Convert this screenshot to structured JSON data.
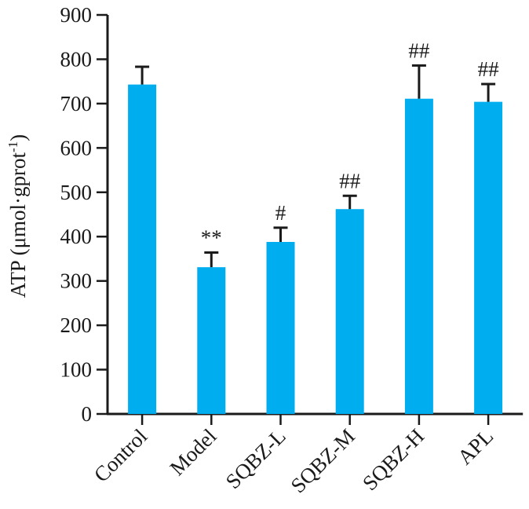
{
  "chart_data": {
    "type": "bar",
    "categories": [
      "Control",
      "Model",
      "SQBZ-L",
      "SQBZ-M",
      "SQBZ-H",
      "APL"
    ],
    "values": [
      743,
      331,
      388,
      462,
      711,
      704
    ],
    "errors": [
      40,
      33,
      32,
      30,
      75,
      40
    ],
    "annotations": [
      "",
      "**",
      "#",
      "##",
      "##",
      "##"
    ],
    "ylabel": "ATP (μmol·gprot",
    "ylabel_sup": "-1",
    "ylabel_close": ")",
    "ylim": [
      0,
      900
    ],
    "yticks": [
      0,
      100,
      200,
      300,
      400,
      500,
      600,
      700,
      800,
      900
    ],
    "bar_color": "#00aeef",
    "grid": false,
    "legend": "none"
  }
}
